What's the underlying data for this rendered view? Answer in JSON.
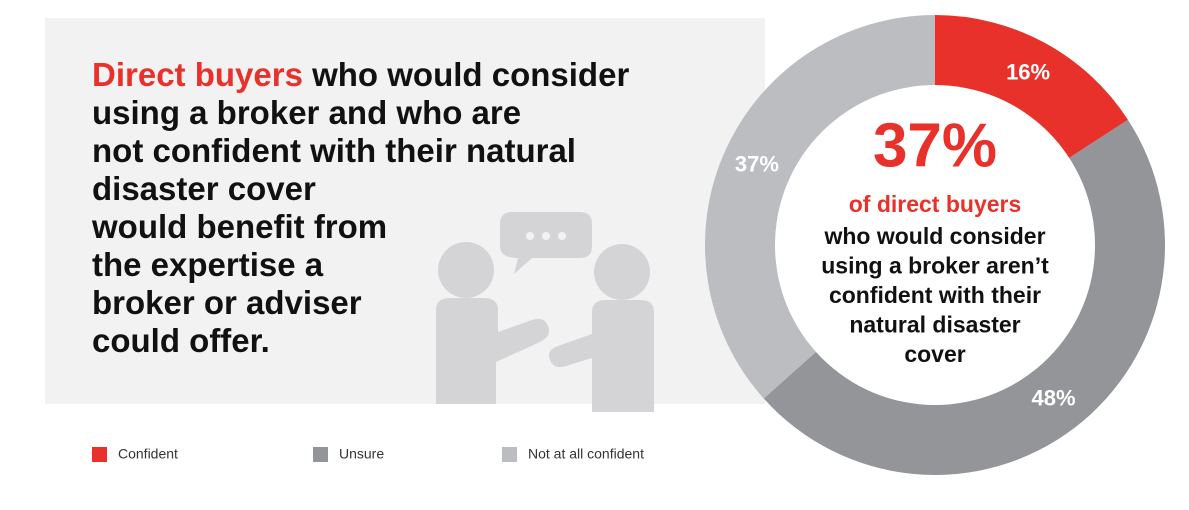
{
  "chart_data": {
    "type": "pie",
    "headline": {
      "highlight": "Direct buyers",
      "lines": [
        "who would consider",
        "using a broker and who are",
        "not confident with their natural",
        "disaster cover",
        "would benefit from",
        "the expertise a",
        "broker or adviser",
        "could offer."
      ]
    },
    "center": {
      "stat": "37%",
      "highlight": "of direct buyers",
      "lines": [
        "who would consider",
        "using a broker aren’t",
        "confident with their",
        "natural disaster",
        "cover"
      ]
    },
    "categories": [
      "Confident",
      "Unsure",
      "Not at all confident"
    ],
    "values": [
      16,
      48,
      37
    ],
    "value_labels": [
      "16%",
      "48%",
      "37%"
    ],
    "colors": [
      "#e8312a",
      "#939598",
      "#bcbdc0"
    ],
    "legend": "bottom-left"
  }
}
